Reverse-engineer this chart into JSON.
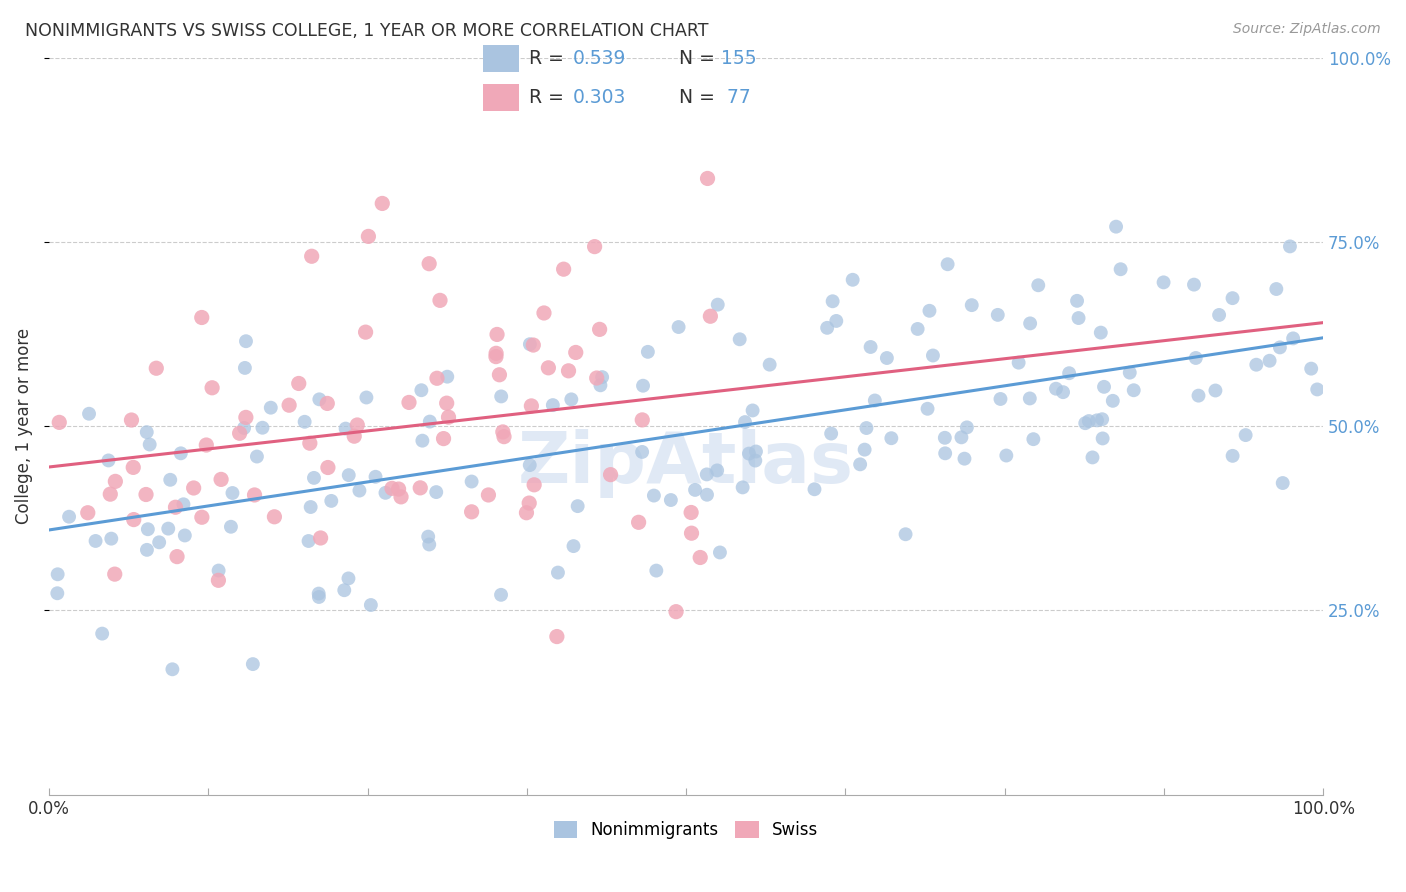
{
  "title": "NONIMMIGRANTS VS SWISS COLLEGE, 1 YEAR OR MORE CORRELATION CHART",
  "source": "Source: ZipAtlas.com",
  "ylabel": "College, 1 year or more",
  "xlim": [
    0,
    100
  ],
  "ylim": [
    0,
    100
  ],
  "xtick_positions": [
    0,
    12.5,
    25,
    37.5,
    50,
    62.5,
    75,
    87.5,
    100
  ],
  "xtick_labels_shown": {
    "0": "0.0%",
    "100": "100.0%"
  },
  "ytick_positions": [
    25,
    50,
    75,
    100
  ],
  "ytick_labels": [
    "25.0%",
    "50.0%",
    "75.0%",
    "100.0%"
  ],
  "blue_color": "#5b9bd5",
  "pink_color": "#e06080",
  "blue_fill": "#aac4e0",
  "pink_fill": "#f0a8b8",
  "grid_color": "#cccccc",
  "background": "#ffffff",
  "R_nonimm": 0.539,
  "N_nonimm": 155,
  "R_swiss": 0.303,
  "N_swiss": 77,
  "seed": 99,
  "watermark": "ZipAtlas"
}
